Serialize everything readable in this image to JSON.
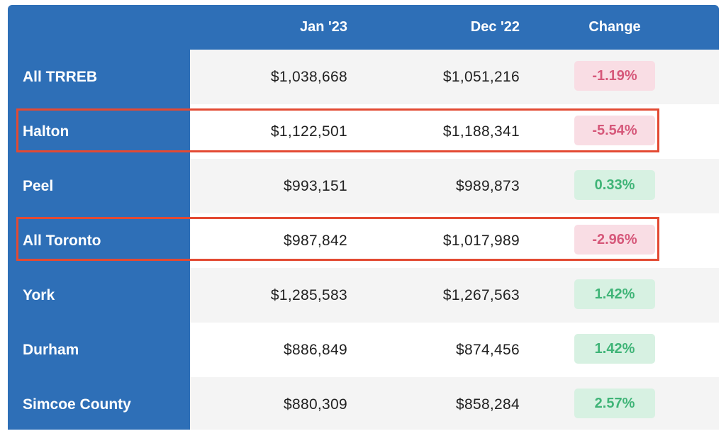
{
  "chart_data": {
    "type": "table",
    "columns": [
      "",
      "Jan '23",
      "Dec '22",
      "Change"
    ],
    "rows": [
      {
        "region": "All TRREB",
        "jan_23": "$1,038,668",
        "dec_22": "$1,051,216",
        "change": "-1.19%",
        "change_value": -1.19,
        "highlighted": false
      },
      {
        "region": "Halton",
        "jan_23": "$1,122,501",
        "dec_22": "$1,188,341",
        "change": "-5.54%",
        "change_value": -5.54,
        "highlighted": true
      },
      {
        "region": "Peel",
        "jan_23": "$993,151",
        "dec_22": "$989,873",
        "change": "0.33%",
        "change_value": 0.33,
        "highlighted": false
      },
      {
        "region": "All Toronto",
        "jan_23": "$987,842",
        "dec_22": "$1,017,989",
        "change": "-2.96%",
        "change_value": -2.96,
        "highlighted": true
      },
      {
        "region": "York",
        "jan_23": "$1,285,583",
        "dec_22": "$1,267,563",
        "change": "1.42%",
        "change_value": 1.42,
        "highlighted": false
      },
      {
        "region": "Durham",
        "jan_23": "$886,849",
        "dec_22": "$874,456",
        "change": "1.42%",
        "change_value": 1.42,
        "highlighted": false
      },
      {
        "region": "Simcoe County",
        "jan_23": "$880,309",
        "dec_22": "$858,284",
        "change": "2.57%",
        "change_value": 2.57,
        "highlighted": false
      }
    ],
    "colors": {
      "header_bg": "#2e6fb7",
      "negative_text": "#d6587a",
      "negative_bg": "#f9dde4",
      "positive_text": "#3fb477",
      "positive_bg": "#d7f1e2",
      "highlight_border": "#e34a33"
    }
  }
}
